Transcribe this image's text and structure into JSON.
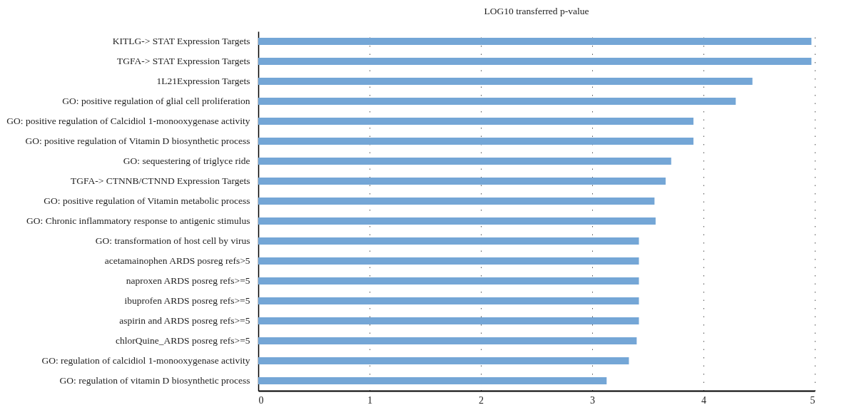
{
  "chart_data": {
    "type": "bar",
    "orientation": "horizontal",
    "title": "LOG10 transferred p-value",
    "categories": [
      "KITLG-> STAT Expression Targets",
      "TGFA-> STAT Expression Targets",
      "1L21Expression Targets",
      "GO: positive regulation of glial cell proliferation",
      "GO: positive regulation of Calcidiol 1-monooxygenase activity",
      "GO: positive regulation of Vitamin D biosynthetic process",
      "GO: sequestering of triglyce ride",
      "TGFA-> CTNNB/CTNND Expression Targets",
      "GO: positive regulation of Vitamin metabolic process",
      "GO: Chronic inflammatory response to antigenic stimulus",
      "GO: transformation of host cell by virus",
      "acetamainophen ARDS posreg refs>5",
      "naproxen ARDS posreg refs>=5",
      "ibuprofen ARDS posreg refs>=5",
      "aspirin and ARDS posreg refs>=5",
      "chlorQuine_ARDS posreg refs>=5",
      "GO: regulation of calcidiol 1-monooxygenase activity",
      "GO: regulation of vitamin D biosynthetic process"
    ],
    "values": [
      4.97,
      4.97,
      4.44,
      4.29,
      3.91,
      3.91,
      3.71,
      3.66,
      3.56,
      3.57,
      3.42,
      3.42,
      3.42,
      3.42,
      3.42,
      3.4,
      3.33,
      3.13
    ],
    "color": "#74a6d6",
    "xlim": [
      0,
      5
    ],
    "xticks": [
      0,
      1,
      2,
      3,
      4,
      5
    ],
    "grid": "x"
  }
}
